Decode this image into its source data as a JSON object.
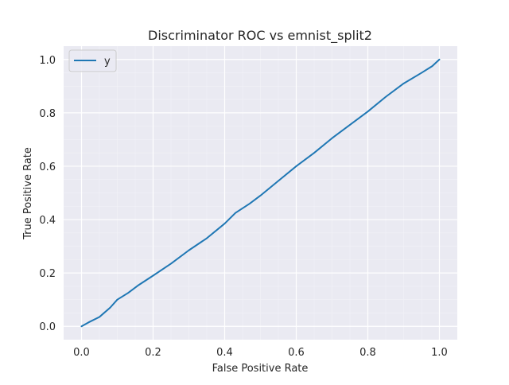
{
  "chart_data": {
    "type": "line",
    "title": "Discriminator ROC vs emnist_split2",
    "xlabel": "False Positive Rate",
    "ylabel": "True Positive Rate",
    "xlim": [
      -0.05,
      1.05
    ],
    "ylim": [
      -0.05,
      1.05
    ],
    "xticks": [
      "0.0",
      "0.2",
      "0.4",
      "0.6",
      "0.8",
      "1.0"
    ],
    "yticks": [
      "0.0",
      "0.2",
      "0.4",
      "0.6",
      "0.8",
      "1.0"
    ],
    "grid": true,
    "minor_grid": true,
    "legend_position": "top-left",
    "series": [
      {
        "name": "y",
        "color": "#1f77b4",
        "x": [
          0.0,
          0.02,
          0.05,
          0.08,
          0.1,
          0.13,
          0.16,
          0.2,
          0.25,
          0.3,
          0.35,
          0.4,
          0.43,
          0.47,
          0.5,
          0.55,
          0.6,
          0.65,
          0.7,
          0.75,
          0.8,
          0.85,
          0.9,
          0.95,
          0.98,
          1.0
        ],
        "y": [
          0.0,
          0.015,
          0.035,
          0.07,
          0.1,
          0.125,
          0.155,
          0.19,
          0.235,
          0.285,
          0.33,
          0.385,
          0.425,
          0.46,
          0.49,
          0.545,
          0.6,
          0.65,
          0.705,
          0.755,
          0.805,
          0.86,
          0.91,
          0.95,
          0.975,
          1.0
        ]
      }
    ]
  },
  "colors": {
    "axes_background": "#eaeaf2",
    "grid_major": "#ffffff",
    "grid_minor": "#f2f2f7",
    "text": "#262626"
  }
}
